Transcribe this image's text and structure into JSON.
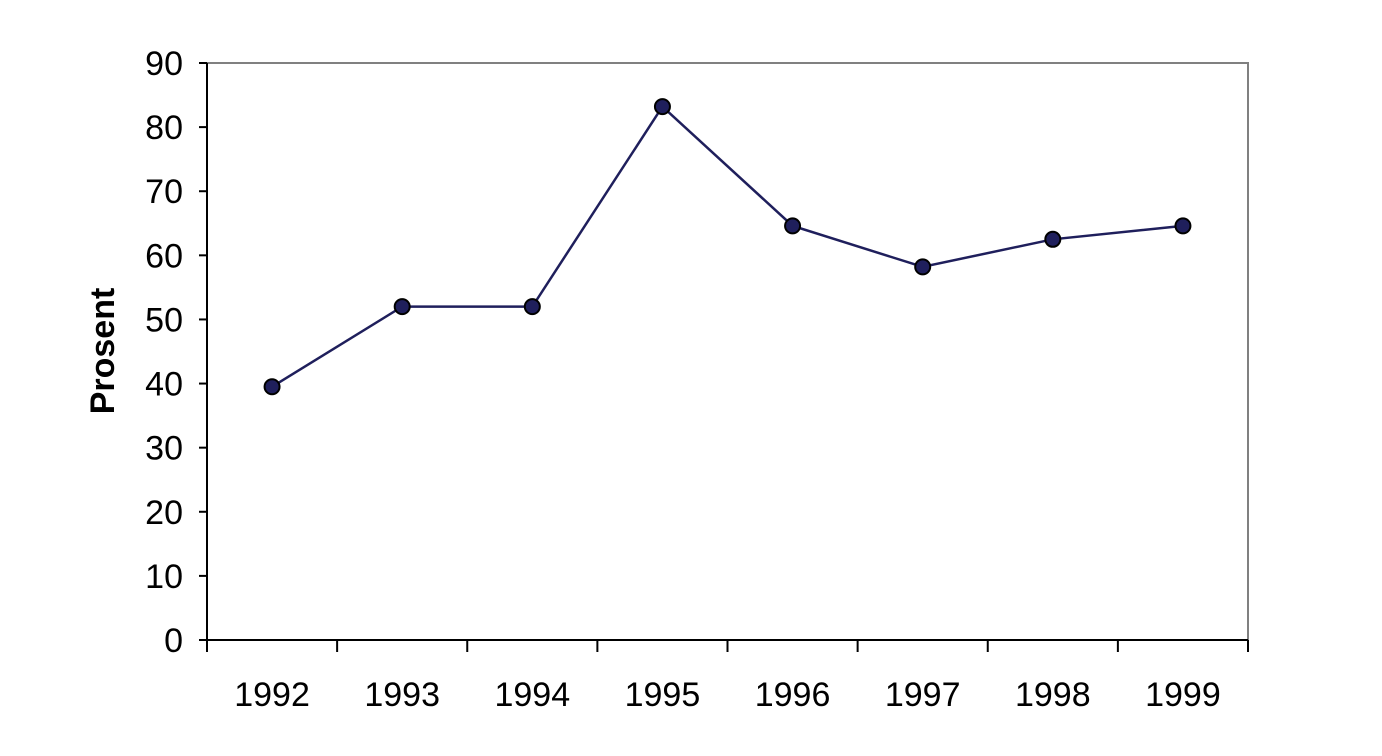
{
  "chart_data": {
    "type": "line",
    "title": "",
    "xlabel": "",
    "ylabel": "Prosent",
    "categories": [
      "1992",
      "1993",
      "1994",
      "1995",
      "1996",
      "1997",
      "1998",
      "1999"
    ],
    "series": [
      {
        "values": [
          39.5,
          52,
          52,
          83.2,
          64.6,
          58.2,
          62.5,
          64.6
        ],
        "color": "#1f1f5c"
      }
    ],
    "ylim": [
      0,
      90
    ],
    "yticks": [
      0,
      10,
      20,
      30,
      40,
      50,
      60,
      70,
      80,
      90
    ],
    "grid": false,
    "legend": "none",
    "frame_color": "#808080"
  }
}
